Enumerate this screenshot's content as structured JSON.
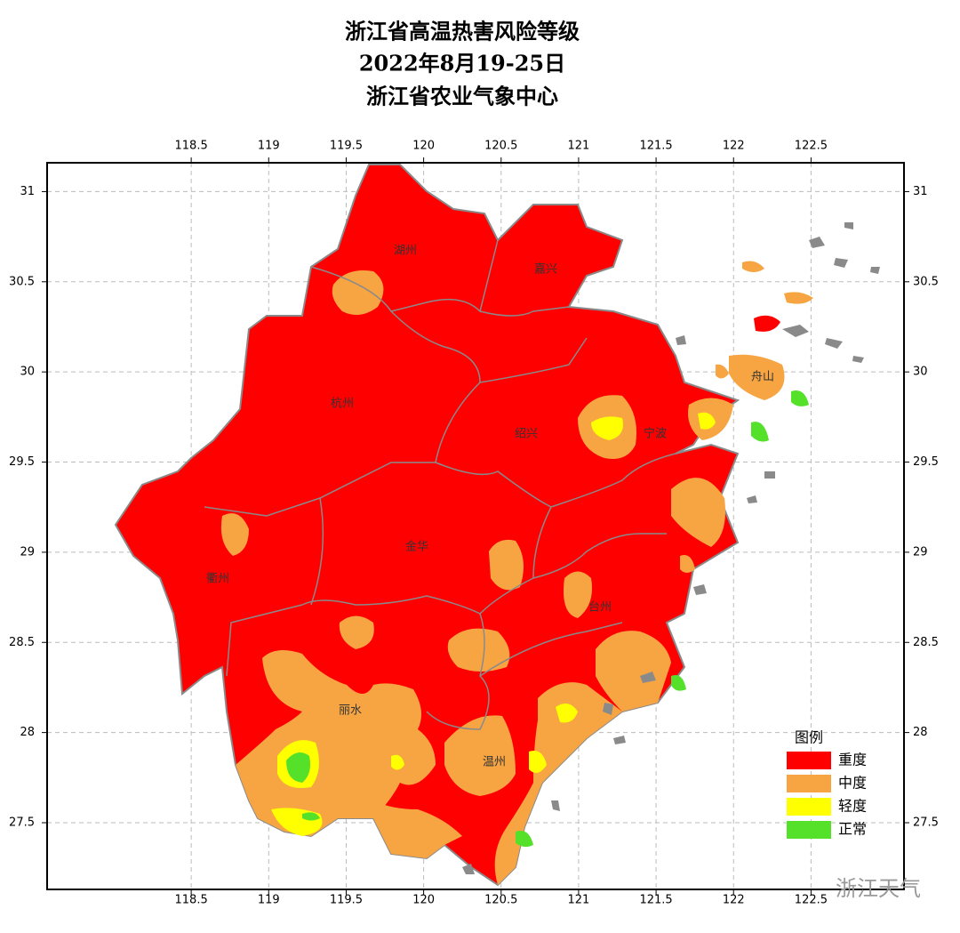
{
  "title_lines": [
    "浙江省高温热害风险等级",
    "2022年8月19-25日",
    "浙江省农业气象中心"
  ],
  "map": {
    "xlim": [
      117.57,
      123.1
    ],
    "ylim": [
      27.13,
      31.16
    ],
    "xticks": [
      118.5,
      119,
      119.5,
      120,
      120.5,
      121,
      121.5,
      122,
      122.5
    ],
    "yticks": [
      31,
      30.5,
      30,
      29.5,
      29,
      28.5,
      28,
      27.5
    ],
    "grid": true,
    "places": [
      "湖州",
      "嘉兴",
      "杭州",
      "绍兴",
      "宁波",
      "舟山",
      "衢州",
      "金华",
      "台州",
      "丽水",
      "温州"
    ],
    "legend": {
      "title": "图例",
      "items": [
        {
          "label": "重度",
          "color": "#ff0000"
        },
        {
          "label": "中度",
          "color": "#f7a543"
        },
        {
          "label": "轻度",
          "color": "#ffff00"
        },
        {
          "label": "正常",
          "color": "#55e02a"
        }
      ]
    }
  },
  "watermark": "浙江天气"
}
